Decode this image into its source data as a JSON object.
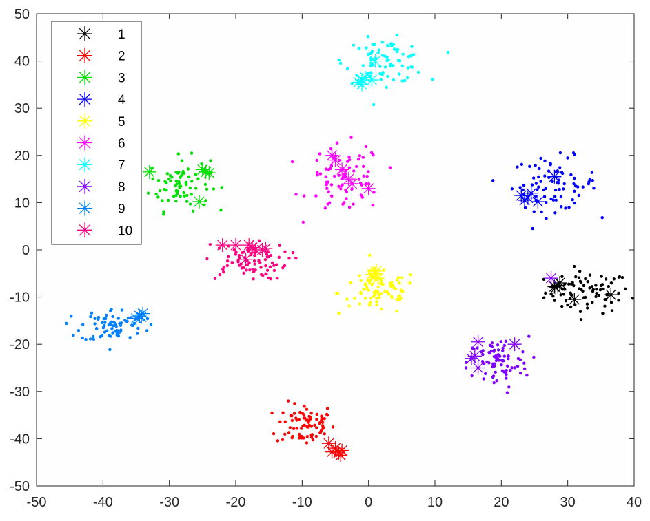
{
  "chart_data": {
    "type": "scatter",
    "title": "",
    "xlabel": "",
    "ylabel": "",
    "xlim": [
      -50,
      40
    ],
    "ylim": [
      -50,
      50
    ],
    "x_ticks": [
      "-50",
      "-40",
      "-30",
      "-20",
      "-10",
      "0",
      "10",
      "20",
      "30",
      "40"
    ],
    "y_ticks": [
      "50",
      "40",
      "30",
      "20",
      "10",
      "0",
      "-10",
      "-20",
      "-30",
      "-40",
      "-50"
    ],
    "grid": false,
    "legend_position": "top-left",
    "series": [
      {
        "name": "1",
        "color": "#000000",
        "points_center": [
          33,
          -9
        ],
        "points_spread": [
          3.2,
          2.2
        ],
        "centroids": [
          [
            28.5,
            -7.5
          ],
          [
            28.2,
            -8
          ],
          [
            28.8,
            -7
          ],
          [
            31,
            -10.5
          ],
          [
            36.5,
            -9.5
          ],
          [
            28,
            -7.8
          ]
        ]
      },
      {
        "name": "2",
        "color": "#FF0000",
        "points_center": [
          -9.5,
          -37
        ],
        "points_spread": [
          2.2,
          2.3
        ],
        "centroids": [
          [
            -5,
            -42
          ],
          [
            -4.5,
            -43
          ],
          [
            -4,
            -42.5
          ],
          [
            -6,
            -41
          ],
          [
            -5.5,
            -42.8
          ],
          [
            -4.2,
            -43.5
          ]
        ]
      },
      {
        "name": "3",
        "color": "#00E000",
        "points_center": [
          -28.5,
          14
        ],
        "points_spread": [
          2.3,
          2.8
        ],
        "centroids": [
          [
            -33,
            16.5
          ],
          [
            -24.5,
            16.5
          ],
          [
            -25.5,
            10.2
          ],
          [
            -24,
            16.3
          ],
          [
            -25,
            17
          ]
        ]
      },
      {
        "name": "4",
        "color": "#0000FF",
        "points_center": [
          28,
          14
        ],
        "points_spread": [
          3.2,
          2.8
        ],
        "centroids": [
          [
            24,
            11
          ],
          [
            23.5,
            10.5
          ],
          [
            24.5,
            12
          ],
          [
            28,
            15.5
          ],
          [
            25.5,
            10.2
          ],
          [
            23,
            11.5
          ]
        ]
      },
      {
        "name": "5",
        "color": "#FFFF00",
        "points_center": [
          1.5,
          -9
        ],
        "points_spread": [
          3.0,
          2.4
        ],
        "centroids": [
          [
            1,
            -5
          ],
          [
            0.8,
            -5.8
          ],
          [
            1.2,
            -4.5
          ],
          [
            0.5,
            -5.2
          ],
          [
            1.4,
            -6
          ]
        ]
      },
      {
        "name": "6",
        "color": "#FF00FF",
        "points_center": [
          -3.5,
          15
        ],
        "points_spread": [
          2.8,
          3.6
        ],
        "centroids": [
          [
            -5,
            19
          ],
          [
            -4,
            17
          ],
          [
            -3,
            15
          ],
          [
            -2.5,
            14
          ],
          [
            0,
            13
          ],
          [
            -5.5,
            20
          ]
        ]
      },
      {
        "name": "7",
        "color": "#00FFFF",
        "points_center": [
          2.5,
          40
        ],
        "points_spread": [
          3.0,
          2.3
        ],
        "centroids": [
          [
            -1,
            36
          ],
          [
            -1.5,
            35.5
          ],
          [
            -0.5,
            36.5
          ],
          [
            1,
            40
          ],
          [
            0.5,
            36
          ],
          [
            -1,
            35
          ]
        ]
      },
      {
        "name": "8",
        "color": "#8000FF",
        "points_center": [
          19.5,
          -24
        ],
        "points_spread": [
          2.3,
          2.8
        ],
        "centroids": [
          [
            16,
            -22.5
          ],
          [
            16.5,
            -19.5
          ],
          [
            16.5,
            -25
          ],
          [
            22,
            -20
          ],
          [
            27.5,
            -6
          ],
          [
            15.5,
            -23
          ]
        ]
      },
      {
        "name": "9",
        "color": "#0080FF",
        "points_center": [
          -38.5,
          -16
        ],
        "points_spread": [
          2.4,
          1.8
        ],
        "centroids": [
          [
            -34.5,
            -14
          ],
          [
            -34,
            -13.5
          ],
          [
            -35,
            -14.5
          ],
          [
            -34.2,
            -14.2
          ]
        ]
      },
      {
        "name": "10",
        "color": "#FF0080",
        "points_center": [
          -18.5,
          -2.5
        ],
        "points_spread": [
          3.2,
          1.9
        ],
        "centroids": [
          [
            -18,
            1
          ],
          [
            -20,
            1
          ],
          [
            -22,
            1
          ],
          [
            -17,
            0
          ],
          [
            -16,
            0
          ],
          [
            -18.5,
            -2
          ],
          [
            -17.5,
            0.5
          ],
          [
            -15.5,
            0.3
          ]
        ]
      }
    ]
  }
}
